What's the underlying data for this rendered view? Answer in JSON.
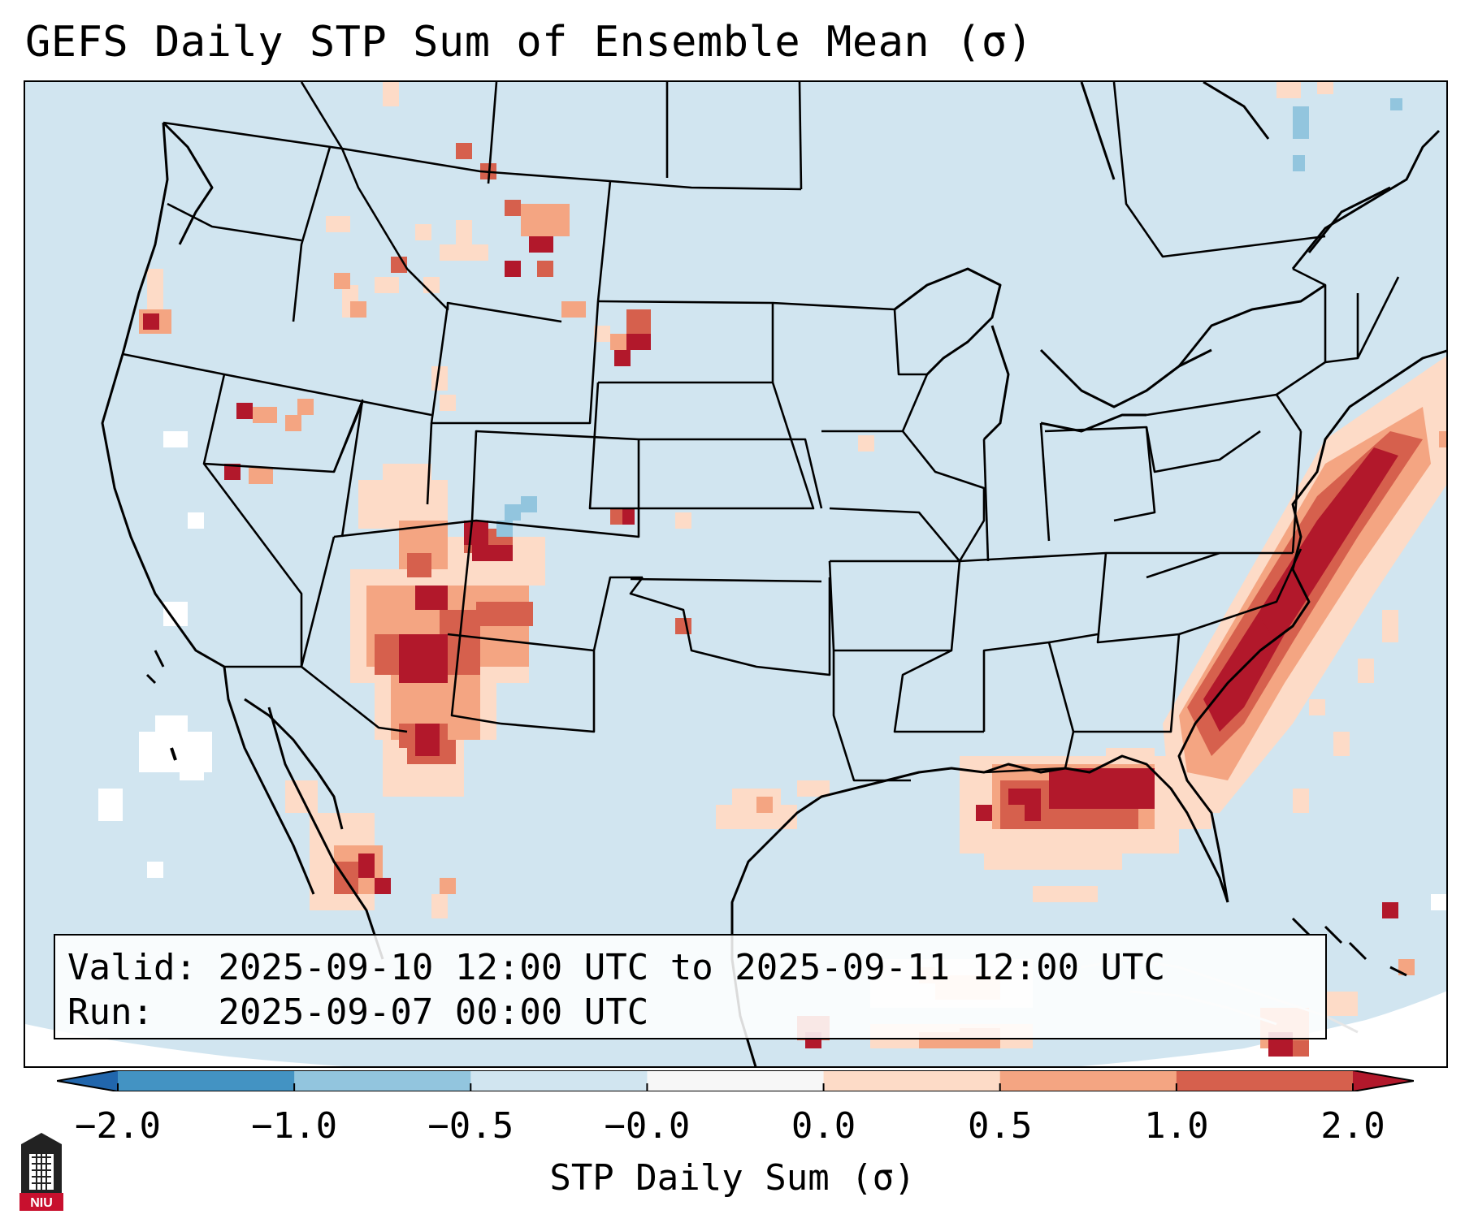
{
  "title": "GEFS Daily STP Sum of Ensemble Mean (σ)",
  "info": {
    "valid_label": "Valid:",
    "valid_value": "2025-09-10 12:00 UTC to 2025-09-11 12:00 UTC",
    "run_label": "Run:",
    "run_value": "2025-09-07 00:00 UTC"
  },
  "colorbar": {
    "label": "STP Daily Sum (σ)",
    "ticks": [
      "−2.0",
      "−1.0",
      "−0.5",
      "−0.0",
      "0.0",
      "0.5",
      "1.0",
      "2.0"
    ],
    "bins": [
      {
        "range": "< -2.0",
        "color": "#2166ac"
      },
      {
        "range": "-2.0 to -1.0",
        "color": "#4393c3"
      },
      {
        "range": "-1.0 to -0.5",
        "color": "#92c5de"
      },
      {
        "range": "-0.5 to -0.0",
        "color": "#d1e5f0"
      },
      {
        "range": "-0.0 to 0.0",
        "color": "#f7f7f7"
      },
      {
        "range": "0.0 to 0.5",
        "color": "#fddbc7"
      },
      {
        "range": "0.5 to 1.0",
        "color": "#f4a582"
      },
      {
        "range": "1.0 to 2.0",
        "color": "#d6604d"
      },
      {
        "range": "> 2.0",
        "color": "#b2182b"
      }
    ],
    "extend": "both"
  },
  "map": {
    "projection": "Lambert Conformal (CONUS)",
    "background_value_color": "#d1e5f0",
    "regions": [
      {
        "name": "Four Corners / Arizona-Colorado",
        "level": "> 2.0"
      },
      {
        "name": "Gulf of Mexico off Florida Panhandle",
        "level": "> 2.0"
      },
      {
        "name": "Atlantic off Carolinas",
        "level": "> 2.0"
      },
      {
        "name": "Northern Rockies / Montana",
        "level": "1.0 to 2.0"
      },
      {
        "name": "Western South Dakota",
        "level": "1.0 to 2.0"
      },
      {
        "name": "Oregon Coast",
        "level": "1.0 to 2.0"
      },
      {
        "name": "Baja / Northwest Mexico",
        "level": "1.0 to 2.0"
      },
      {
        "name": "Texas Gulf Coast",
        "level": "0.0 to 0.5"
      },
      {
        "name": "Caribbean south of Cuba",
        "level": "0.5 to 1.0"
      }
    ]
  },
  "logo": {
    "text": "NIU",
    "color": "#c8102e"
  }
}
